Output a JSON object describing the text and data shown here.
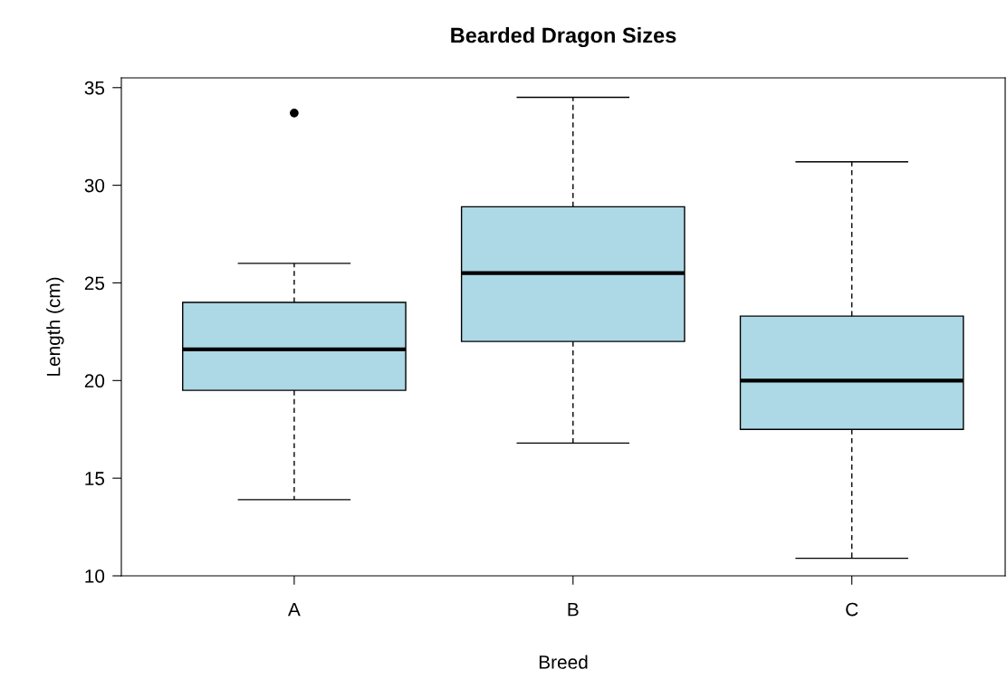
{
  "chart_data": {
    "type": "box",
    "title": "Bearded Dragon Sizes",
    "xlabel": "Breed",
    "ylabel": "Length (cm)",
    "categories": [
      "A",
      "B",
      "C"
    ],
    "boxes": [
      {
        "low": 13.9,
        "q1": 19.5,
        "median": 21.6,
        "q3": 24.0,
        "high": 26.0,
        "outliers": [
          33.7
        ]
      },
      {
        "low": 16.8,
        "q1": 22.0,
        "median": 25.5,
        "q3": 28.9,
        "high": 34.5
      },
      {
        "low": 10.9,
        "q1": 17.5,
        "median": 20.0,
        "q3": 23.3,
        "high": 31.2
      }
    ],
    "color": "#add8e6",
    "ylim": [
      10,
      35.5
    ],
    "yticks": [
      10,
      15,
      20,
      25,
      30,
      35
    ],
    "grid": false,
    "legend": false
  }
}
